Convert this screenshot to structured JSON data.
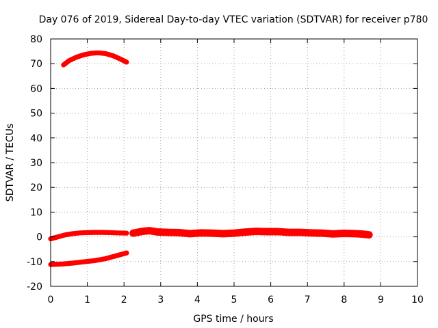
{
  "chart_data": {
    "type": "scatter",
    "title": "Day 076 of 2019, Sidereal Day-to-day VTEC variation (SDTVAR) for receiver p780",
    "xlabel": "GPS time / hours",
    "ylabel": "SDTVAR / TECUs",
    "xlim": [
      0,
      10
    ],
    "ylim": [
      -20,
      80
    ],
    "xticks": [
      "0",
      "1",
      "2",
      "3",
      "4",
      "5",
      "6",
      "7",
      "8",
      "9",
      "10"
    ],
    "yticks": [
      "-20",
      "-10",
      "0",
      "10",
      "20",
      "30",
      "40",
      "50",
      "60",
      "70",
      "80"
    ],
    "grid": true,
    "color": "#ff0000",
    "series": [
      {
        "points": [
          [
            0.35,
            69.5
          ],
          [
            0.5,
            71.2
          ],
          [
            0.7,
            72.6
          ],
          [
            0.9,
            73.6
          ],
          [
            1.1,
            74.2
          ],
          [
            1.3,
            74.4
          ],
          [
            1.5,
            74.1
          ],
          [
            1.7,
            73.2
          ],
          [
            1.9,
            71.9
          ],
          [
            2.07,
            70.6
          ]
        ],
        "thickness": 2.0
      },
      {
        "points": [
          [
            0.0,
            -0.8
          ],
          [
            0.2,
            0.0
          ],
          [
            0.4,
            0.8
          ],
          [
            0.6,
            1.3
          ],
          [
            0.8,
            1.6
          ],
          [
            1.0,
            1.7
          ],
          [
            1.2,
            1.8
          ],
          [
            1.4,
            1.8
          ],
          [
            1.6,
            1.7
          ],
          [
            1.8,
            1.6
          ],
          [
            2.07,
            1.5
          ]
        ],
        "thickness": 2.0
      },
      {
        "points": [
          [
            0.0,
            -11.2
          ],
          [
            0.3,
            -11.0
          ],
          [
            0.6,
            -10.6
          ],
          [
            0.9,
            -10.1
          ],
          [
            1.2,
            -9.6
          ],
          [
            1.5,
            -8.8
          ],
          [
            1.8,
            -7.6
          ],
          [
            2.07,
            -6.5
          ]
        ],
        "thickness": 2.0
      },
      {
        "points": [
          [
            2.25,
            1.5
          ],
          [
            2.5,
            2.2
          ],
          [
            2.7,
            2.5
          ],
          [
            2.9,
            2.0
          ],
          [
            3.2,
            1.8
          ],
          [
            3.5,
            1.7
          ],
          [
            3.8,
            1.3
          ],
          [
            4.1,
            1.6
          ],
          [
            4.4,
            1.5
          ],
          [
            4.7,
            1.3
          ],
          [
            5.0,
            1.5
          ],
          [
            5.3,
            1.9
          ],
          [
            5.6,
            2.2
          ],
          [
            5.9,
            2.1
          ],
          [
            6.2,
            2.1
          ],
          [
            6.5,
            1.8
          ],
          [
            6.8,
            1.8
          ],
          [
            7.1,
            1.6
          ],
          [
            7.4,
            1.5
          ],
          [
            7.7,
            1.2
          ],
          [
            8.0,
            1.4
          ],
          [
            8.3,
            1.3
          ],
          [
            8.5,
            1.1
          ],
          [
            8.68,
            0.8
          ]
        ],
        "thickness": 3.0
      }
    ]
  }
}
